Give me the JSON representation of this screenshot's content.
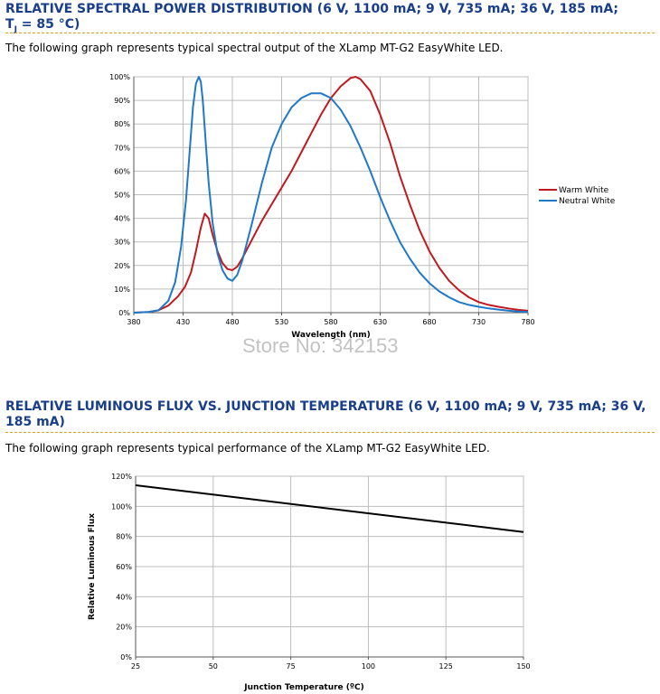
{
  "sections": [
    {
      "heading_pre": "RELATIVE SPECTRAL POWER DISTRIBUTION (6 V, 1100 mA; 9 V, 735 mA; 36 V, 185 mA;",
      "heading_tj": "T",
      "heading_sub": "J",
      "heading_post": " = 85 °C)",
      "intro": "The following graph represents typical spectral output of the XLamp MT-G2 EasyWhite LED."
    },
    {
      "heading_line1": "RELATIVE LUMINOUS FLUX VS. JUNCTION TEMPERATURE (6 V, 1100 mA; 9 V, 735 mA; 36 V,",
      "heading_line2": "185 mA)",
      "intro": "The following graph represents typical performance of the XLamp MT-G2 EasyWhite LED."
    }
  ],
  "watermark": "Store No: 342153",
  "chart_data": [
    {
      "type": "line",
      "title": "",
      "xlabel": "Wavelength (nm)",
      "ylabel": "",
      "xlim": [
        380,
        780
      ],
      "ylim": [
        0,
        100
      ],
      "x_ticks": [
        380,
        430,
        480,
        530,
        580,
        630,
        680,
        730,
        780
      ],
      "y_ticks": [
        0,
        10,
        20,
        30,
        40,
        50,
        60,
        70,
        80,
        90,
        100
      ],
      "y_tick_labels": [
        "0%",
        "10%",
        "20%",
        "30%",
        "40%",
        "50%",
        "60%",
        "70%",
        "80%",
        "90%",
        "100%"
      ],
      "grid": true,
      "legend": "right",
      "series": [
        {
          "name": "Warm White",
          "color": "#c0191e",
          "x": [
            380,
            395,
            405,
            415,
            425,
            432,
            438,
            443,
            448,
            452,
            456,
            460,
            465,
            470,
            475,
            480,
            485,
            490,
            500,
            510,
            520,
            530,
            540,
            550,
            560,
            570,
            580,
            590,
            600,
            605,
            610,
            620,
            630,
            640,
            650,
            660,
            670,
            680,
            690,
            700,
            710,
            720,
            730,
            740,
            750,
            760,
            770,
            780
          ],
          "y": [
            0,
            0.3,
            1,
            3,
            7,
            11,
            17,
            26,
            36,
            42,
            40,
            33,
            26,
            21,
            18.5,
            18,
            19.5,
            23,
            31,
            39,
            46,
            53,
            60,
            68,
            76,
            84,
            91,
            96,
            99.5,
            100,
            99,
            94,
            84,
            72,
            58,
            46,
            35,
            26,
            19,
            13.5,
            9.5,
            6.5,
            4.5,
            3.3,
            2.5,
            1.8,
            1.2,
            0.8
          ]
        },
        {
          "name": "Neutral White",
          "color": "#1f78c8",
          "x": [
            380,
            395,
            405,
            415,
            422,
            428,
            433,
            437,
            440,
            443,
            446,
            448,
            450,
            453,
            456,
            460,
            465,
            470,
            475,
            480,
            485,
            490,
            500,
            510,
            520,
            530,
            540,
            550,
            560,
            570,
            580,
            590,
            600,
            610,
            620,
            630,
            640,
            650,
            660,
            670,
            680,
            690,
            700,
            710,
            720,
            730,
            740,
            750,
            760,
            770,
            780
          ],
          "y": [
            0,
            0.3,
            1,
            5,
            13,
            28,
            48,
            70,
            87,
            97,
            100,
            98,
            90,
            72,
            55,
            38,
            25,
            18,
            14.5,
            13.5,
            16,
            22,
            38,
            55,
            70,
            80,
            87,
            91,
            93,
            93,
            91,
            86,
            79,
            70,
            60,
            49,
            39,
            30,
            23,
            17,
            12.5,
            9,
            6.5,
            4.5,
            3.3,
            2.5,
            1.8,
            1.3,
            0.9,
            0.5,
            0.3
          ]
        }
      ]
    },
    {
      "type": "line",
      "title": "",
      "xlabel": "Junction Temperature (ºC)",
      "ylabel": "Relative Luminous Flux",
      "xlim": [
        25,
        150
      ],
      "ylim": [
        0,
        120
      ],
      "x_ticks": [
        25,
        50,
        75,
        100,
        125,
        150
      ],
      "y_ticks": [
        0,
        20,
        40,
        60,
        80,
        100,
        120
      ],
      "y_tick_labels": [
        "0%",
        "20%",
        "40%",
        "60%",
        "80%",
        "100%",
        "120%"
      ],
      "grid": true,
      "legend": "none",
      "series": [
        {
          "color": "#000000",
          "x": [
            25,
            150
          ],
          "y": [
            114,
            83
          ]
        }
      ]
    }
  ]
}
